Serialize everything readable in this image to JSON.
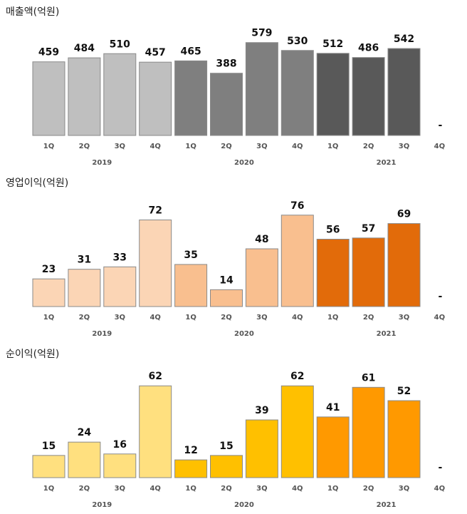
{
  "chart_data": [
    {
      "type": "bar",
      "title": "매출액(억원)",
      "categories": [
        "1Q",
        "2Q",
        "3Q",
        "4Q",
        "1Q",
        "2Q",
        "3Q",
        "4Q",
        "1Q",
        "2Q",
        "3Q",
        "4Q"
      ],
      "years": [
        "2019",
        "2020",
        "2021"
      ],
      "values": [
        459,
        484,
        510,
        457,
        465,
        388,
        579,
        530,
        512,
        486,
        542,
        null
      ],
      "value_labels": [
        "459",
        "484",
        "510",
        "457",
        "465",
        "388",
        "579",
        "530",
        "512",
        "486",
        "542",
        "-"
      ],
      "colors": [
        "#bfbfbf",
        "#bfbfbf",
        "#bfbfbf",
        "#bfbfbf",
        "#7f7f7f",
        "#7f7f7f",
        "#7f7f7f",
        "#7f7f7f",
        "#595959",
        "#595959",
        "#595959",
        "#595959"
      ],
      "ylim": [
        0,
        600
      ],
      "grid": false
    },
    {
      "type": "bar",
      "title": "영업이익(억원)",
      "categories": [
        "1Q",
        "2Q",
        "3Q",
        "4Q",
        "1Q",
        "2Q",
        "3Q",
        "4Q",
        "1Q",
        "2Q",
        "3Q",
        "4Q"
      ],
      "years": [
        "2019",
        "2020",
        "2021"
      ],
      "values": [
        23,
        31,
        33,
        72,
        35,
        14,
        48,
        76,
        56,
        57,
        69,
        null
      ],
      "value_labels": [
        "23",
        "31",
        "33",
        "72",
        "35",
        "14",
        "48",
        "76",
        "56",
        "57",
        "69",
        "-"
      ],
      "colors": [
        "#fbd5b5",
        "#fbd5b5",
        "#fbd5b5",
        "#fbd5b5",
        "#f9bf8f",
        "#f9bf8f",
        "#f9bf8f",
        "#f9bf8f",
        "#e26b0a",
        "#e26b0a",
        "#e26b0a",
        "#e26b0a"
      ],
      "ylim": [
        0,
        80
      ],
      "grid": false
    },
    {
      "type": "bar",
      "title": "순이익(억원)",
      "categories": [
        "1Q",
        "2Q",
        "3Q",
        "4Q",
        "1Q",
        "2Q",
        "3Q",
        "4Q",
        "1Q",
        "2Q",
        "3Q",
        "4Q"
      ],
      "years": [
        "2019",
        "2020",
        "2021"
      ],
      "values": [
        15,
        24,
        16,
        62,
        12,
        15,
        39,
        62,
        41,
        61,
        52,
        null
      ],
      "value_labels": [
        "15",
        "24",
        "16",
        "62",
        "12",
        "15",
        "39",
        "62",
        "41",
        "61",
        "52",
        "-"
      ],
      "colors": [
        "#ffe07f",
        "#ffe07f",
        "#ffe07f",
        "#ffe07f",
        "#ffc000",
        "#ffc000",
        "#ffc000",
        "#ffc000",
        "#ff9900",
        "#ff9900",
        "#ff9900",
        "#ff9900"
      ],
      "ylim": [
        0,
        65
      ],
      "grid": false
    }
  ]
}
